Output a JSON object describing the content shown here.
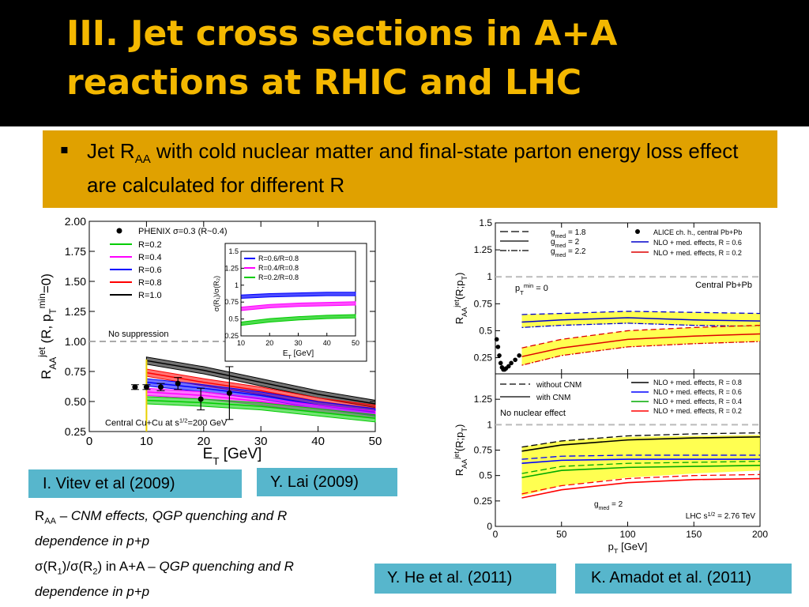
{
  "slide": {
    "title_line1": "III. Jet cross sections in A+A",
    "title_line2": "reactions at RHIC and LHC",
    "bullet": {
      "pre": "Jet R",
      "sub": "AA",
      "post": " with cold nuclear matter and final-state parton energy loss effect are calculated for different R"
    },
    "captions": [
      "I. Vitev et al (2009)",
      "Y. Lai (2009)",
      "Y. He et al. (2011)",
      "K. Amadot et al. (2011)"
    ],
    "note1": {
      "pre": "R",
      "sub": "AA",
      "dash": " – ",
      "italic": "CNM effects, QGP quenching and R dependence in p+p"
    },
    "note2": {
      "pre": "σ(R",
      "s1": "1",
      "mid": ")/σ(R",
      "s2": "2",
      "post": ") in A+A – ",
      "italic": "QGP quenching and R dependence in p+p"
    },
    "colors": {
      "title": "#f4b800",
      "box": "#e0a100",
      "caption": "#57b6cc"
    }
  },
  "chart_data": [
    {
      "type": "line",
      "xlabel_main": "E",
      "xlabel_sub": "T",
      "xlabel_unit": " [GeV]",
      "ylabel_main": "R",
      "ylabel_sub": "AA",
      "ylabel_sup": "jet",
      "ylabel_args": " (R, p",
      "ylabel_args_sub": "T",
      "ylabel_args_sup": "min",
      "ylabel_tail": "=0)",
      "xlim": [
        0,
        50
      ],
      "ylim": [
        0.25,
        2.0
      ],
      "xticks": [
        0,
        10,
        20,
        30,
        40,
        50
      ],
      "yticks": [
        0.25,
        0.5,
        0.75,
        1.0,
        1.25,
        1.5,
        1.75,
        2.0
      ],
      "ytick_labels": [
        "0.25",
        "0.50",
        "0.75",
        "1.00",
        "1.25",
        "1.50",
        "1.75",
        "2.00"
      ],
      "legend": [
        "PHENIX σ=0.3 (R~0.4)",
        "R=0.2",
        "R=0.4",
        "R=0.6",
        "R=0.8",
        "R=1.0"
      ],
      "no_suppression": "No suppression",
      "annotation": "Central Cu+Cu at s",
      "annotation_sup": "1/2",
      "annotation_tail": "=200 GeV",
      "x": [
        10,
        20,
        30,
        40,
        50
      ],
      "series": [
        {
          "name": "R=1.0",
          "color": "#000000",
          "values": [
            0.84,
            0.76,
            0.66,
            0.56,
            0.48
          ]
        },
        {
          "name": "R=0.8",
          "color": "#ff0000",
          "values": [
            0.74,
            0.66,
            0.59,
            0.5,
            0.44
          ]
        },
        {
          "name": "R=0.6",
          "color": "#0000ff",
          "values": [
            0.66,
            0.61,
            0.55,
            0.47,
            0.41
          ]
        },
        {
          "name": "R=0.4",
          "color": "#ff00ff",
          "values": [
            0.58,
            0.55,
            0.5,
            0.44,
            0.39
          ]
        },
        {
          "name": "R=0.2",
          "color": "#00cc00",
          "values": [
            0.51,
            0.49,
            0.46,
            0.41,
            0.36
          ]
        }
      ],
      "phenix": {
        "x": [
          8,
          10,
          12.5,
          15.5,
          19.5,
          24.5
        ],
        "y": [
          0.62,
          0.62,
          0.62,
          0.65,
          0.52,
          0.57
        ],
        "err": [
          0.02,
          0.02,
          0.03,
          0.05,
          0.09,
          0.22
        ]
      },
      "inset": {
        "xlabel_main": "E",
        "xlabel_sub": "T",
        "xlabel_unit": " [GeV]",
        "ylabel": "σ(R₁)/σ(R₂)",
        "xticks": [
          10,
          20,
          30,
          40,
          50
        ],
        "yticks": [
          0.25,
          0.5,
          0.75,
          1.0,
          1.25,
          1.5
        ],
        "ytick_labels": [
          "0.25",
          "0.5",
          "0.75",
          "1",
          "1.25",
          "1.5"
        ],
        "legend": [
          "R=0.6/R=0.8",
          "R=0.4/R=0.8",
          "R=0.2/R=0.8"
        ],
        "x": [
          10,
          20,
          30,
          40,
          50
        ],
        "series": [
          {
            "name": "R=0.6/R=0.8",
            "color": "#0000ff",
            "values": [
              0.83,
              0.85,
              0.86,
              0.87,
              0.87
            ]
          },
          {
            "name": "R=0.4/R=0.8",
            "color": "#ff00ff",
            "values": [
              0.65,
              0.69,
              0.71,
              0.72,
              0.73
            ]
          },
          {
            "name": "R=0.2/R=0.8",
            "color": "#00cc00",
            "values": [
              0.43,
              0.48,
              0.51,
              0.53,
              0.54
            ]
          }
        ]
      }
    },
    {
      "type": "line",
      "xlabel_main": "p",
      "xlabel_sub": "T",
      "xlabel_unit": " [GeV]",
      "xlim": [
        0,
        200
      ],
      "xticks": [
        0,
        50,
        100,
        150,
        200
      ],
      "panels": [
        {
          "ylabel": "R",
          "ylabel_sub": "AA",
          "ylabel_sup": "jet",
          "ylabel_args": "(R;p",
          "ylabel_args_sub": "T",
          "ylabel_tail": ")",
          "yticks": [
            0.25,
            0.5,
            0.75,
            1,
            1.25,
            1.5
          ],
          "ytick_labels": [
            "0.25",
            "0.5",
            "0.75",
            "1",
            "1.25",
            "1.5"
          ],
          "legend_left": [
            "g",
            "med",
            " = 1.8",
            "g",
            "med",
            " = 2",
            "g",
            "med",
            " = 2.2"
          ],
          "legend_right": [
            "ALICE ch. h., central Pb+Pb",
            "NLO + med. effects, R = 0.6",
            "NLO + med. effects, R = 0.2"
          ],
          "ptmin": [
            "p",
            "T",
            "min",
            " = 0"
          ],
          "label": "Central Pb+Pb",
          "x": [
            20,
            50,
            100,
            150,
            200
          ],
          "bands": [
            {
              "name": "R = 0.6",
              "color": "#0000cc",
              "upper": [
                0.65,
                0.66,
                0.68,
                0.67,
                0.66
              ],
              "center": [
                0.58,
                0.6,
                0.62,
                0.6,
                0.59
              ],
              "lower": [
                0.53,
                0.55,
                0.57,
                0.55,
                0.54
              ]
            },
            {
              "name": "R = 0.2",
              "color": "#dd0000",
              "upper": [
                0.34,
                0.42,
                0.5,
                0.53,
                0.55
              ],
              "center": [
                0.26,
                0.34,
                0.42,
                0.45,
                0.47
              ],
              "lower": [
                0.18,
                0.27,
                0.35,
                0.38,
                0.4
              ]
            }
          ],
          "alice": {
            "x": [
              1,
              2,
              3,
              4,
              5,
              6,
              7,
              8,
              10,
              12,
              15,
              18
            ],
            "y": [
              0.42,
              0.35,
              0.27,
              0.2,
              0.16,
              0.14,
              0.14,
              0.15,
              0.17,
              0.2,
              0.23,
              0.27
            ]
          }
        },
        {
          "ylabel": "R",
          "ylabel_sub": "AA",
          "ylabel_sup": "jet",
          "ylabel_args": "(R;p",
          "ylabel_args_sub": "T",
          "ylabel_tail": ")",
          "yticks": [
            0,
            0.25,
            0.5,
            0.75,
            1,
            1.25
          ],
          "ytick_labels": [
            "0",
            "0.25",
            "0.5",
            "0.75",
            "1",
            "1.25"
          ],
          "legend_left": [
            "without CNM",
            "with CNM"
          ],
          "no_effect": "No nuclear effect",
          "legend_right": [
            "NLO + med. effects, R = 0.8",
            "NLO + med. effects, R = 0.6",
            "NLO + med. effects, R = 0.4",
            "NLO + med. effects, R = 0.2"
          ],
          "gmed": [
            "g",
            "med",
            " = 2"
          ],
          "energy": [
            "LHC s",
            "1/2",
            " = 2.76 TeV"
          ],
          "x": [
            20,
            50,
            100,
            150,
            200
          ],
          "series": [
            {
              "name": "R = 0.8",
              "color": "#000000",
              "values": [
                0.74,
                0.8,
                0.85,
                0.87,
                0.88
              ]
            },
            {
              "name": "R = 0.6",
              "color": "#0000ff",
              "values": [
                0.62,
                0.65,
                0.66,
                0.66,
                0.66
              ]
            },
            {
              "name": "R = 0.4",
              "color": "#00aa00",
              "values": [
                0.48,
                0.55,
                0.58,
                0.59,
                0.6
              ]
            },
            {
              "name": "R = 0.2",
              "color": "#ff0000",
              "values": [
                0.28,
                0.36,
                0.43,
                0.46,
                0.47
              ]
            }
          ]
        }
      ]
    }
  ]
}
